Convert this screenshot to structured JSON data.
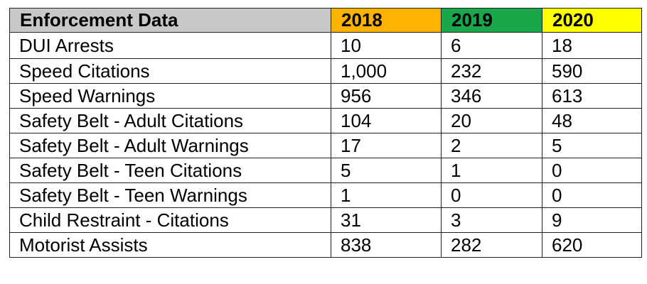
{
  "table": {
    "header": {
      "label": "Enforcement Data",
      "years": [
        {
          "label": "2018",
          "color": "#ffb300"
        },
        {
          "label": "2019",
          "color": "#1aa64a"
        },
        {
          "label": "2020",
          "color": "#ffff00"
        }
      ]
    },
    "rows": [
      {
        "label": "DUI Arrests",
        "values": [
          "10",
          "6",
          "18"
        ]
      },
      {
        "label": "Speed Citations",
        "values": [
          "1,000",
          "232",
          "590"
        ]
      },
      {
        "label": "Speed Warnings",
        "values": [
          "956",
          "346",
          "613"
        ]
      },
      {
        "label": "Safety Belt - Adult Citations",
        "values": [
          "104",
          "20",
          "48"
        ]
      },
      {
        "label": "Safety Belt - Adult Warnings",
        "values": [
          "17",
          "2",
          "5"
        ]
      },
      {
        "label": "Safety Belt - Teen Citations",
        "values": [
          "5",
          "1",
          "0"
        ]
      },
      {
        "label": "Safety Belt - Teen Warnings",
        "values": [
          "1",
          "0",
          "0"
        ]
      },
      {
        "label": "Child Restraint - Citations",
        "values": [
          "31",
          "3",
          "9"
        ]
      },
      {
        "label": "Motorist Assists",
        "values": [
          "838",
          "282",
          "620"
        ]
      }
    ]
  }
}
